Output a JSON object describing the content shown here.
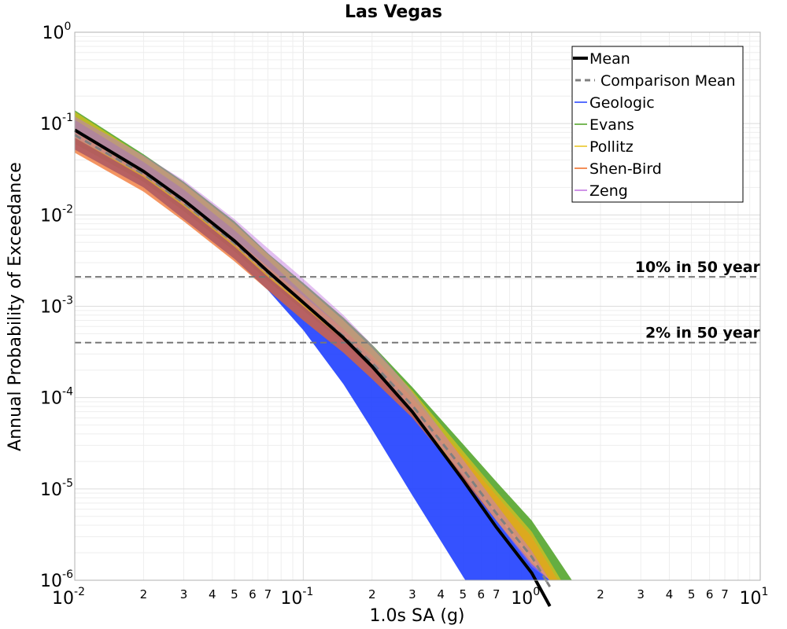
{
  "chart_data": {
    "type": "line",
    "title": "Las Vegas",
    "xlabel": "1.0s SA (g)",
    "ylabel": "Annual Probability of Exceedance",
    "xscale": "log",
    "yscale": "log",
    "xlim": [
      0.01,
      10
    ],
    "ylim": [
      1e-06,
      1
    ],
    "grid": true,
    "legend_position": "top-right",
    "x_major_ticks": [
      {
        "base": "10",
        "exp": "-2"
      },
      {
        "base": "10",
        "exp": "-1"
      },
      {
        "base": "10",
        "exp": "0"
      },
      {
        "base": "10",
        "exp": "1"
      }
    ],
    "y_major_ticks": [
      {
        "base": "10",
        "exp": "0"
      },
      {
        "base": "10",
        "exp": "-1"
      },
      {
        "base": "10",
        "exp": "-2"
      },
      {
        "base": "10",
        "exp": "-3"
      },
      {
        "base": "10",
        "exp": "-4"
      },
      {
        "base": "10",
        "exp": "-5"
      },
      {
        "base": "10",
        "exp": "-6"
      }
    ],
    "x_minor_tick_labels": [
      "2",
      "3",
      "4",
      "5",
      "6",
      "7"
    ],
    "x": [
      0.01,
      0.02,
      0.03,
      0.05,
      0.07,
      0.1,
      0.15,
      0.2,
      0.3,
      0.5,
      0.7,
      1.0,
      1.2,
      1.5,
      2.0
    ],
    "series": [
      {
        "name": "Mean",
        "style": "solid",
        "color": "#000000",
        "values": [
          0.085,
          0.03,
          0.0145,
          0.0052,
          0.0024,
          0.0011,
          0.00045,
          0.00022,
          7e-05,
          1.25e-05,
          3.8e-06,
          1.2e-06,
          5.2e-07,
          null,
          null
        ]
      },
      {
        "name": "Comparison Mean",
        "style": "dashed",
        "color": "#808080",
        "values": [
          0.075,
          0.028,
          0.0135,
          0.0049,
          0.0023,
          0.0011,
          0.00047,
          0.00024,
          8.2e-05,
          1.65e-05,
          5.4e-06,
          1.8e-06,
          8.5e-07,
          null,
          null
        ]
      },
      {
        "name": "Geologic",
        "color": "#1f3fff",
        "band_low": [
          0.052,
          0.02,
          0.009,
          0.0033,
          0.0015,
          0.00055,
          0.00014,
          4.5e-05,
          8.5e-06,
          1.1e-06,
          null,
          null,
          null,
          null,
          null
        ],
        "band_high": [
          0.11,
          0.038,
          0.019,
          0.0068,
          0.0032,
          0.0014,
          0.00056,
          0.00027,
          8.5e-05,
          1.6e-05,
          5.3e-06,
          1.6e-06,
          7e-07,
          null,
          null
        ]
      },
      {
        "name": "Evans",
        "color": "#4aa020",
        "band_low": [
          0.06,
          0.023,
          0.011,
          0.004,
          0.0019,
          0.0009,
          0.0004,
          0.0002,
          7.5e-05,
          1.6e-05,
          5.5e-06,
          1.8e-06,
          9e-07,
          null,
          null
        ],
        "band_high": [
          0.14,
          0.046,
          0.023,
          0.0085,
          0.0038,
          0.0018,
          0.00075,
          0.00038,
          0.00013,
          3.1e-05,
          1.2e-05,
          4.5e-06,
          2.3e-06,
          1e-06,
          null
        ]
      },
      {
        "name": "Pollitz",
        "color": "#e8c21a",
        "band_low": [
          0.07,
          0.026,
          0.0125,
          0.0045,
          0.0021,
          0.001,
          0.00043,
          0.00021,
          7e-05,
          1.4e-05,
          4.5e-06,
          1.5e-06,
          7e-07,
          null,
          null
        ],
        "band_high": [
          0.135,
          0.044,
          0.022,
          0.008,
          0.0037,
          0.0017,
          0.0007,
          0.00035,
          0.00012,
          2.6e-05,
          9.5e-06,
          3.4e-06,
          1.6e-06,
          null,
          null
        ]
      },
      {
        "name": "Shen-Bird",
        "color": "#f06820",
        "band_low": [
          0.048,
          0.018,
          0.0085,
          0.0031,
          0.0015,
          0.0007,
          0.00031,
          0.00016,
          6e-05,
          1.3e-05,
          4.5e-06,
          1.5e-06,
          7e-07,
          null,
          null
        ],
        "band_high": [
          0.08,
          0.03,
          0.015,
          0.0055,
          0.0027,
          0.0013,
          0.00056,
          0.00029,
          0.0001,
          2.3e-05,
          8.5e-06,
          3e-06,
          1.4e-06,
          null,
          null
        ]
      },
      {
        "name": "Zeng",
        "color": "#c070e0",
        "band_low": [
          0.07,
          0.027,
          0.013,
          0.0047,
          0.0022,
          0.00105,
          0.00045,
          0.00022,
          7.3e-05,
          1.4e-05,
          4.5e-06,
          1.4e-06,
          6e-07,
          null,
          null
        ],
        "band_high": [
          0.12,
          0.045,
          0.024,
          0.009,
          0.0043,
          0.002,
          0.0008,
          0.00038,
          0.000115,
          2.1e-05,
          6.8e-06,
          2.1e-06,
          9.5e-07,
          null,
          null
        ]
      }
    ],
    "reference_lines": [
      {
        "label": "10% in 50 year",
        "y": 0.0021
      },
      {
        "label": "2% in 50 year",
        "y": 0.0004
      }
    ]
  }
}
